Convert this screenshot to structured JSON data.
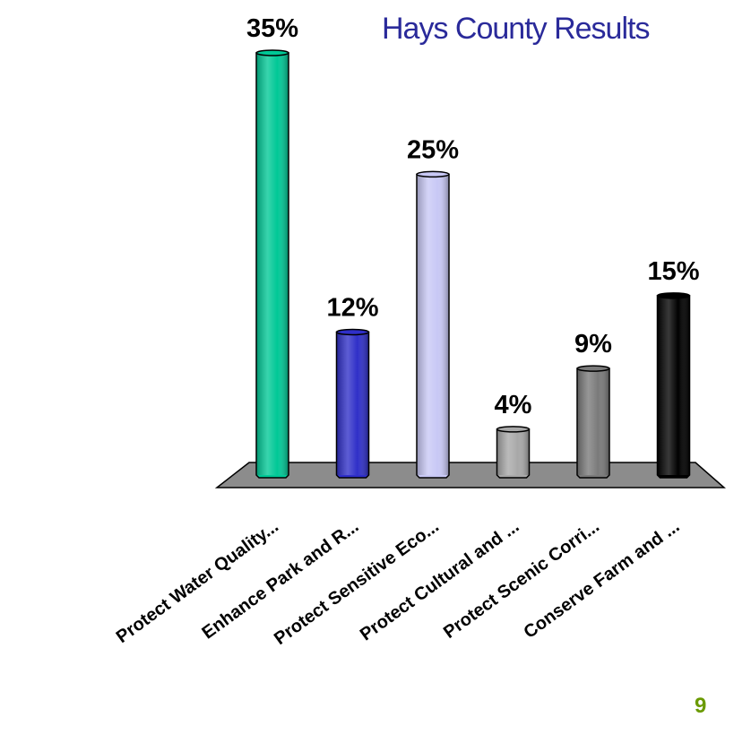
{
  "title": "Hays County Results",
  "page_number": "9",
  "colors": {
    "title": "#2a2a9a",
    "page_number": "#6a9a00",
    "floor": "#8c8c8c"
  },
  "chart_data": {
    "type": "bar",
    "title": "Hays County Results",
    "categories": [
      "Protect Water Quality...",
      "Enhance Park and R...",
      "Protect Sensitive Eco...",
      "Protect Cultural and ...",
      "Protect Scenic Corri...",
      "Conserve Farm and ..."
    ],
    "values": [
      35,
      12,
      25,
      4,
      9,
      15
    ],
    "value_labels": [
      "35%",
      "12%",
      "25%",
      "4%",
      "9%",
      "15%"
    ],
    "colors": [
      "#00c896",
      "#2f2fc8",
      "#c8c8f5",
      "#a8a8a8",
      "#7a7a7a",
      "#000000"
    ],
    "ylim": [
      0,
      35
    ],
    "grid": false,
    "legend": false
  }
}
